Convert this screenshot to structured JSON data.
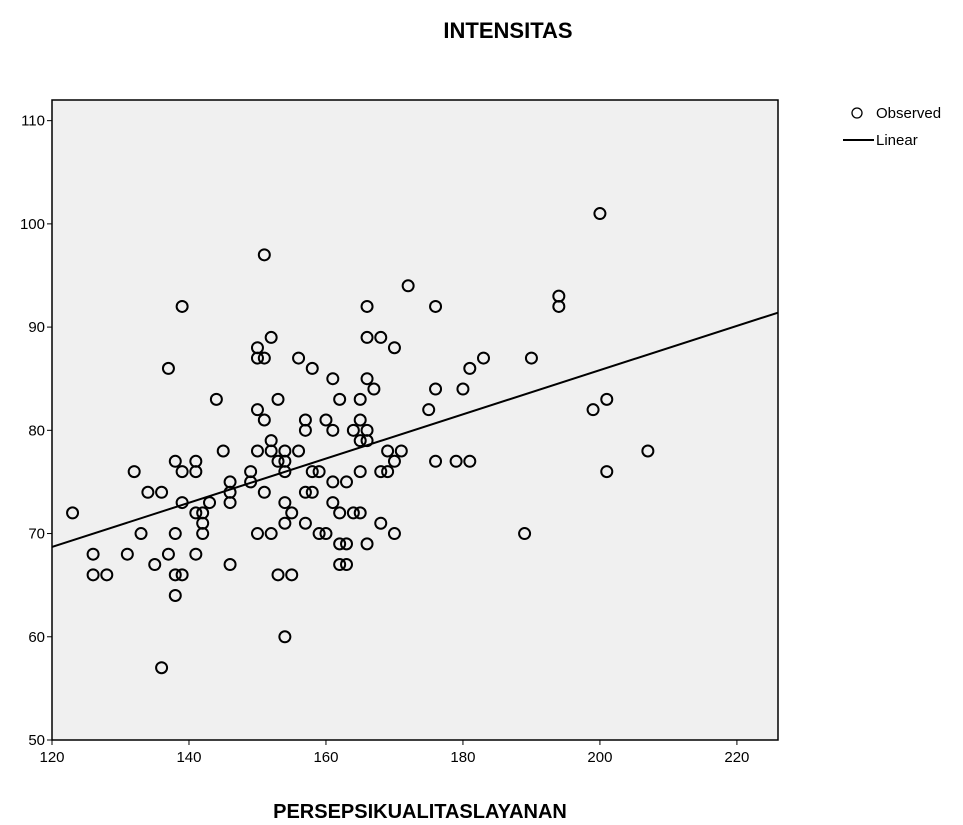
{
  "chart_data": {
    "type": "scatter",
    "title": "INTENSITAS",
    "xlabel": "PERSEPSIKUALITASLAYANAN",
    "ylabel": "",
    "xlim": [
      120,
      226
    ],
    "ylim": [
      50,
      112
    ],
    "xticks": [
      120,
      140,
      160,
      180,
      200,
      220
    ],
    "yticks": [
      50,
      60,
      70,
      80,
      90,
      100,
      110
    ],
    "grid": false,
    "background": "#f0f0f0",
    "marker_color": "#000000",
    "legend": {
      "position": "right",
      "entries": [
        {
          "label": "Observed",
          "kind": "marker"
        },
        {
          "label": "Linear",
          "kind": "line"
        }
      ]
    },
    "fit_line": {
      "x": [
        120,
        226
      ],
      "y": [
        68.7,
        91.4
      ]
    },
    "series": [
      {
        "name": "Observed",
        "points": [
          [
            123,
            72
          ],
          [
            126,
            68
          ],
          [
            126,
            66
          ],
          [
            128,
            66
          ],
          [
            131,
            68
          ],
          [
            132,
            76
          ],
          [
            133,
            70
          ],
          [
            134,
            74
          ],
          [
            135,
            67
          ],
          [
            136,
            74
          ],
          [
            136,
            57
          ],
          [
            137,
            68
          ],
          [
            137,
            86
          ],
          [
            138,
            77
          ],
          [
            138,
            70
          ],
          [
            138,
            66
          ],
          [
            138,
            64
          ],
          [
            139,
            92
          ],
          [
            139,
            76
          ],
          [
            139,
            73
          ],
          [
            139,
            66
          ],
          [
            141,
            77
          ],
          [
            141,
            76
          ],
          [
            141,
            72
          ],
          [
            141,
            68
          ],
          [
            142,
            72
          ],
          [
            142,
            71
          ],
          [
            142,
            70
          ],
          [
            143,
            73
          ],
          [
            144,
            83
          ],
          [
            145,
            78
          ],
          [
            146,
            75
          ],
          [
            146,
            74
          ],
          [
            146,
            73
          ],
          [
            146,
            67
          ],
          [
            149,
            76
          ],
          [
            149,
            75
          ],
          [
            150,
            88
          ],
          [
            150,
            87
          ],
          [
            150,
            82
          ],
          [
            150,
            78
          ],
          [
            150,
            70
          ],
          [
            151,
            97
          ],
          [
            151,
            87
          ],
          [
            151,
            81
          ],
          [
            151,
            74
          ],
          [
            152,
            89
          ],
          [
            152,
            79
          ],
          [
            152,
            78
          ],
          [
            152,
            70
          ],
          [
            153,
            83
          ],
          [
            153,
            77
          ],
          [
            153,
            66
          ],
          [
            154,
            78
          ],
          [
            154,
            77
          ],
          [
            154,
            76
          ],
          [
            154,
            73
          ],
          [
            154,
            71
          ],
          [
            154,
            60
          ],
          [
            155,
            72
          ],
          [
            155,
            66
          ],
          [
            156,
            87
          ],
          [
            156,
            78
          ],
          [
            157,
            81
          ],
          [
            157,
            80
          ],
          [
            157,
            74
          ],
          [
            157,
            71
          ],
          [
            158,
            86
          ],
          [
            158,
            76
          ],
          [
            158,
            74
          ],
          [
            159,
            76
          ],
          [
            159,
            70
          ],
          [
            160,
            81
          ],
          [
            160,
            70
          ],
          [
            161,
            85
          ],
          [
            161,
            80
          ],
          [
            161,
            75
          ],
          [
            161,
            73
          ],
          [
            162,
            83
          ],
          [
            162,
            72
          ],
          [
            162,
            69
          ],
          [
            162,
            67
          ],
          [
            163,
            75
          ],
          [
            163,
            69
          ],
          [
            163,
            67
          ],
          [
            164,
            80
          ],
          [
            164,
            72
          ],
          [
            165,
            83
          ],
          [
            165,
            81
          ],
          [
            165,
            79
          ],
          [
            165,
            76
          ],
          [
            165,
            72
          ],
          [
            166,
            92
          ],
          [
            166,
            89
          ],
          [
            166,
            85
          ],
          [
            166,
            80
          ],
          [
            166,
            79
          ],
          [
            166,
            69
          ],
          [
            167,
            84
          ],
          [
            168,
            89
          ],
          [
            168,
            76
          ],
          [
            168,
            71
          ],
          [
            169,
            78
          ],
          [
            169,
            76
          ],
          [
            170,
            88
          ],
          [
            170,
            77
          ],
          [
            170,
            70
          ],
          [
            171,
            78
          ],
          [
            172,
            94
          ],
          [
            175,
            82
          ],
          [
            176,
            92
          ],
          [
            176,
            84
          ],
          [
            176,
            77
          ],
          [
            179,
            77
          ],
          [
            180,
            84
          ],
          [
            181,
            86
          ],
          [
            181,
            77
          ],
          [
            183,
            87
          ],
          [
            189,
            70
          ],
          [
            190,
            87
          ],
          [
            194,
            93
          ],
          [
            194,
            92
          ],
          [
            199,
            82
          ],
          [
            200,
            101
          ],
          [
            201,
            83
          ],
          [
            201,
            76
          ],
          [
            207,
            78
          ]
        ]
      }
    ]
  }
}
